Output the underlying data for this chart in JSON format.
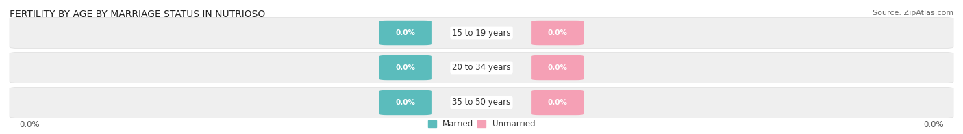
{
  "title": "FERTILITY BY AGE BY MARRIAGE STATUS IN NUTRIOSO",
  "source": "Source: ZipAtlas.com",
  "age_groups": [
    "15 to 19 years",
    "20 to 34 years",
    "35 to 50 years"
  ],
  "married_values": [
    0.0,
    0.0,
    0.0
  ],
  "unmarried_values": [
    0.0,
    0.0,
    0.0
  ],
  "married_color": "#5bbcbc",
  "unmarried_color": "#f5a0b5",
  "row_bg_color": "#eeeeee",
  "row_bg_gradient_start": "#f5f5f5",
  "row_bg_gradient_end": "#e0e0e0",
  "title_fontsize": 10,
  "source_fontsize": 8,
  "label_fontsize": 8.5,
  "value_fontsize": 7.5,
  "x_left_label": "0.0%",
  "x_right_label": "0.0%",
  "legend_married": "Married",
  "legend_unmarried": "Unmarried",
  "background_color": "#ffffff",
  "pill_label_color": "#ffffff",
  "age_label_color": "#333333",
  "axis_label_color": "#555555"
}
